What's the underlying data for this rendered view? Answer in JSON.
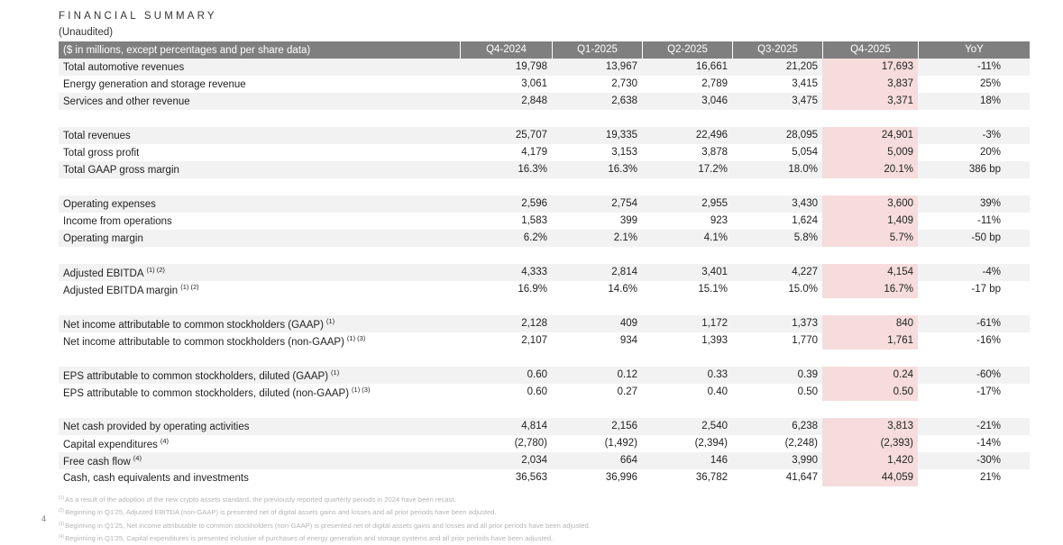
{
  "header": {
    "title": "FINANCIAL SUMMARY",
    "subtitle": "(Unaudited)"
  },
  "table": {
    "columns": [
      "($ in millions, except percentages and per share data)",
      "Q4-2024",
      "Q1-2025",
      "Q2-2025",
      "Q3-2025",
      "Q4-2025",
      "YoY"
    ],
    "groups": [
      [
        {
          "label": "Total automotive revenues",
          "cells": [
            "19,798",
            "13,967",
            "16,661",
            "21,205",
            "17,693",
            "-11%"
          ]
        },
        {
          "label": "Energy generation and storage revenue",
          "cells": [
            "3,061",
            "2,730",
            "2,789",
            "3,415",
            "3,837",
            "25%"
          ]
        },
        {
          "label": "Services and other revenue",
          "cells": [
            "2,848",
            "2,638",
            "3,046",
            "3,475",
            "3,371",
            "18%"
          ]
        }
      ],
      [
        {
          "label": "Total revenues",
          "cells": [
            "25,707",
            "19,335",
            "22,496",
            "28,095",
            "24,901",
            "-3%"
          ]
        },
        {
          "label": "Total gross profit",
          "cells": [
            "4,179",
            "3,153",
            "3,878",
            "5,054",
            "5,009",
            "20%"
          ]
        },
        {
          "label": "Total GAAP gross margin",
          "cells": [
            "16.3%",
            "16.3%",
            "17.2%",
            "18.0%",
            "20.1%",
            "386 bp"
          ]
        }
      ],
      [
        {
          "label": "Operating expenses",
          "cells": [
            "2,596",
            "2,754",
            "2,955",
            "3,430",
            "3,600",
            "39%"
          ]
        },
        {
          "label": "Income from operations",
          "cells": [
            "1,583",
            "399",
            "923",
            "1,624",
            "1,409",
            "-11%"
          ]
        },
        {
          "label": "Operating margin",
          "cells": [
            "6.2%",
            "2.1%",
            "4.1%",
            "5.8%",
            "5.7%",
            "-50 bp"
          ]
        }
      ],
      [
        {
          "label": "Adjusted EBITDA",
          "notes": "(1) (2)",
          "cells": [
            "4,333",
            "2,814",
            "3,401",
            "4,227",
            "4,154",
            "-4%"
          ]
        },
        {
          "label": "Adjusted EBITDA margin",
          "notes": "(1) (2)",
          "cells": [
            "16.9%",
            "14.6%",
            "15.1%",
            "15.0%",
            "16.7%",
            "-17 bp"
          ]
        }
      ],
      [
        {
          "label": "Net income attributable to common stockholders (GAAP)",
          "notes": "(1)",
          "cells": [
            "2,128",
            "409",
            "1,172",
            "1,373",
            "840",
            "-61%"
          ]
        },
        {
          "label": "Net income attributable to common stockholders (non-GAAP)",
          "notes": "(1) (3)",
          "cells": [
            "2,107",
            "934",
            "1,393",
            "1,770",
            "1,761",
            "-16%"
          ]
        }
      ],
      [
        {
          "label": "EPS attributable to common stockholders, diluted (GAAP)",
          "notes": "(1)",
          "cells": [
            "0.60",
            "0.12",
            "0.33",
            "0.39",
            "0.24",
            "-60%"
          ]
        },
        {
          "label": "EPS attributable to common stockholders, diluted (non-GAAP)",
          "notes": "(1) (3)",
          "cells": [
            "0.60",
            "0.27",
            "0.40",
            "0.50",
            "0.50",
            "-17%"
          ]
        }
      ],
      [
        {
          "label": "Net cash provided by operating activities",
          "cells": [
            "4,814",
            "2,156",
            "2,540",
            "6,238",
            "3,813",
            "-21%"
          ]
        },
        {
          "label": "Capital expenditures",
          "notes": "(4)",
          "cells": [
            "(2,780)",
            "(1,492)",
            "(2,394)",
            "(2,248)",
            "(2,393)",
            "-14%"
          ]
        },
        {
          "label": "Free cash flow",
          "notes": "(4)",
          "cells": [
            "2,034",
            "664",
            "146",
            "3,990",
            "1,420",
            "-30%"
          ]
        },
        {
          "label": "Cash, cash equivalents and investments",
          "cells": [
            "36,563",
            "36,996",
            "36,782",
            "41,647",
            "44,059",
            "21%"
          ]
        }
      ]
    ]
  },
  "footnotes": [
    {
      "marker": "(1)",
      "text": "As a result of the adoption of the new crypto assets standard, the previously reported quarterly periods in 2024 have been recast."
    },
    {
      "marker": "(2)",
      "text": "Beginning in Q1'25, Adjusted EBITDA (non-GAAP) is presented net of digital assets gains and losses and all prior periods have been adjusted."
    },
    {
      "marker": "(3)",
      "text": "Beginning in Q1'25, Net income attributable to common stockholders (non-GAAP) is presented net of digital assets gains and losses and all prior periods have been adjusted."
    },
    {
      "marker": "(4)",
      "text": "Beginning in Q1'25, Capital expenditures is presented inclusive of purchases of energy generation and storage systems and all prior periods have been adjusted."
    }
  ],
  "page_number": "4"
}
